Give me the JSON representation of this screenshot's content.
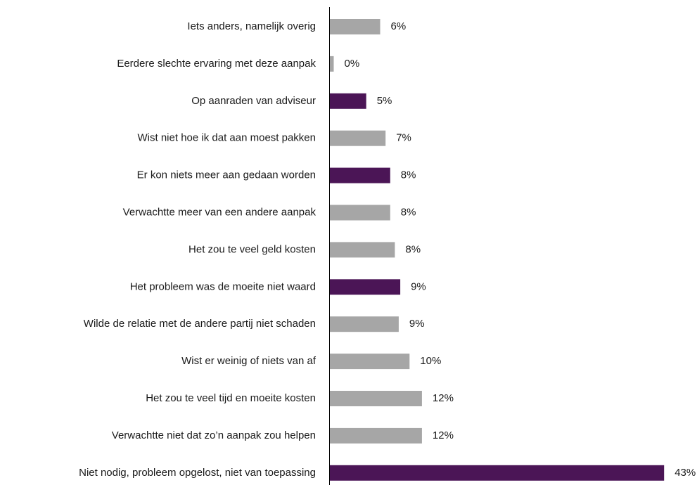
{
  "chart_data": {
    "type": "bar",
    "orientation": "horizontal",
    "title": "",
    "xlabel": "",
    "ylabel": "",
    "xlim": [
      0,
      43
    ],
    "grid": false,
    "legend": "none",
    "categories": [
      "Iets anders, namelijk overig",
      "Eerdere slechte ervaring met deze aanpak",
      "Op aanraden van adviseur",
      "Wist niet hoe ik dat aan moest pakken",
      "Er kon niets meer aan gedaan worden",
      "Verwachtte meer van een andere aanpak",
      "Het zou te veel geld kosten",
      "Het probleem was de moeite niet waard",
      "Wilde de relatie met de andere partij niet schaden",
      "Wist er weinig of niets van af",
      "Het zou te veel tijd en moeite kosten",
      "Verwachtte niet dat zo’n aanpak zou helpen",
      "Niet nodig, probleem opgelost, niet van toepassing"
    ],
    "values": [
      6.5,
      0.5,
      4.7,
      7.2,
      7.8,
      7.8,
      8.4,
      9.1,
      8.9,
      10.3,
      11.9,
      11.9,
      43.2
    ],
    "value_labels": [
      "6%",
      "0%",
      "5%",
      "7%",
      "8%",
      "8%",
      "8%",
      "9%",
      "9%",
      "10%",
      "12%",
      "12%",
      "43%"
    ],
    "highlighted": [
      false,
      false,
      true,
      false,
      true,
      false,
      false,
      true,
      false,
      false,
      false,
      false,
      true
    ],
    "colors": {
      "highlight": "#4b1556",
      "default": "#a6a6a6",
      "axis": "#000000",
      "text": "#1a1a1a"
    }
  }
}
